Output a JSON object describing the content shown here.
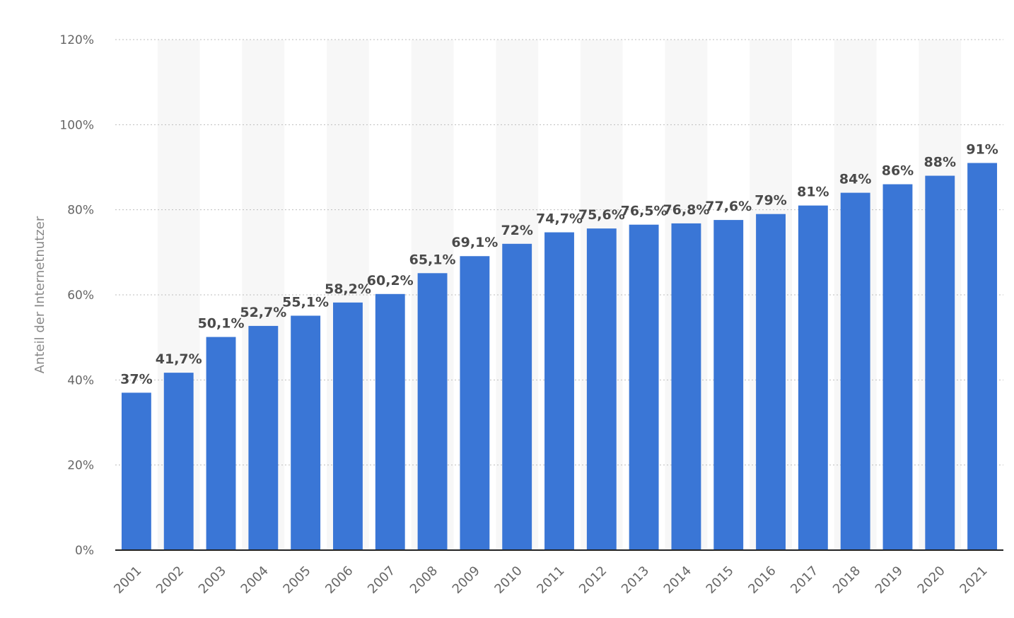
{
  "chart_data": {
    "type": "bar",
    "categories": [
      "2001",
      "2002",
      "2003",
      "2004",
      "2005",
      "2006",
      "2007",
      "2008",
      "2009",
      "2010",
      "2011",
      "2012",
      "2013",
      "2014",
      "2015",
      "2016",
      "2017",
      "2018",
      "2019",
      "2020",
      "2021"
    ],
    "values": [
      37,
      41.7,
      50.1,
      52.7,
      55.1,
      58.2,
      60.2,
      65.1,
      69.1,
      72,
      74.7,
      75.6,
      76.5,
      76.8,
      77.6,
      79,
      81,
      84,
      86,
      88,
      91
    ],
    "value_labels": [
      "37%",
      "41,7%",
      "50,1%",
      "52,7%",
      "55,1%",
      "58,2%",
      "60,2%",
      "65,1%",
      "69,1%",
      "72%",
      "74,7%",
      "75,6%",
      "76,5%",
      "76,8%",
      "77,6%",
      "79%",
      "81%",
      "84%",
      "86%",
      "88%",
      "91%"
    ],
    "ylabel": "Anteil der Internetnutzer",
    "ylim": [
      0,
      120
    ],
    "yticks": [
      0,
      20,
      40,
      60,
      80,
      100,
      120
    ],
    "ytick_labels": [
      "0%",
      "20%",
      "40%",
      "60%",
      "80%",
      "100%",
      "120%"
    ],
    "grid": true,
    "bar_color": "#3a76d6"
  }
}
